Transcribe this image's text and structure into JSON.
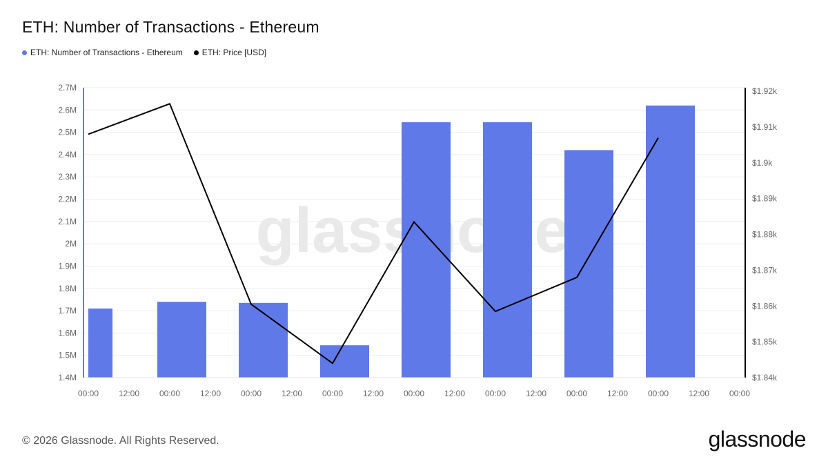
{
  "title": "ETH: Number of Transactions - Ethereum",
  "watermark": "glassnode",
  "footer": {
    "copyright": "© 2026 Glassnode. All Rights Reserved.",
    "logo": "glassnode"
  },
  "colors": {
    "bars": "#6079e8",
    "line": "#000000",
    "left_axis": "#6079e8",
    "right_axis": "#000000"
  },
  "chart_data": {
    "type": "bar",
    "title": "ETH: Number of Transactions - Ethereum",
    "x_ticks": [
      "00:00",
      "12:00",
      "00:00",
      "12:00",
      "00:00",
      "12:00",
      "00:00",
      "12:00",
      "00:00",
      "12:00",
      "00:00",
      "12:00",
      "00:00",
      "12:00",
      "00:00",
      "12:00",
      "00:00"
    ],
    "legend_position": "top-left",
    "grid": true,
    "series": [
      {
        "name": "ETH: Number of Transactions - Ethereum",
        "type": "bar",
        "axis": "left",
        "x": [
          0,
          1,
          2,
          3,
          4,
          5,
          6,
          7
        ],
        "values": [
          1.71,
          1.74,
          1.735,
          1.545,
          2.545,
          2.545,
          2.42,
          2.62
        ]
      },
      {
        "name": "ETH: Price [USD]",
        "type": "line",
        "axis": "right",
        "x": [
          0,
          1,
          2,
          3,
          4,
          5,
          6,
          7
        ],
        "values": [
          1908,
          1916.5,
          1860.5,
          1844,
          1883.5,
          1858.5,
          1868,
          1907
        ]
      }
    ],
    "y_left": {
      "range": [
        1.4,
        2.7
      ],
      "unit": "M",
      "ticks": [
        "1.4M",
        "1.5M",
        "1.6M",
        "1.7M",
        "1.8M",
        "1.9M",
        "2M",
        "2.1M",
        "2.2M",
        "2.3M",
        "2.4M",
        "2.5M",
        "2.6M",
        "2.7M"
      ]
    },
    "y_right": {
      "range": [
        1840,
        1921
      ],
      "unit": "USD",
      "ticks": [
        "$1.84k",
        "$1.85k",
        "$1.86k",
        "$1.87k",
        "$1.88k",
        "$1.89k",
        "$1.9k",
        "$1.91k",
        "$1.92k"
      ]
    }
  }
}
